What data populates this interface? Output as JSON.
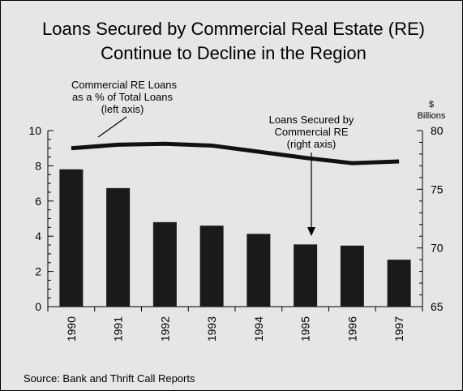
{
  "chart_data": {
    "type": "bar",
    "title_lines": [
      "Loans Secured by Commercial Real Estate (RE)",
      "Continue to Decline in the Region"
    ],
    "categories": [
      "1990",
      "1991",
      "1992",
      "1993",
      "1994",
      "1995",
      "1996",
      "1997"
    ],
    "series": [
      {
        "name": "Commercial RE Loans as a % of Total Loans (left axis)",
        "type": "line",
        "axis": "left",
        "values": [
          9.0,
          9.2,
          9.25,
          9.15,
          8.8,
          8.45,
          8.15,
          8.25
        ]
      },
      {
        "name": "Loans Secured by Commercial RE (right axis)",
        "type": "bar",
        "axis": "right",
        "values": [
          76.7,
          75.1,
          72.2,
          71.9,
          71.2,
          70.3,
          70.2,
          69.0
        ]
      }
    ],
    "left_axis": {
      "ylim": [
        0,
        10
      ],
      "ticks": [
        "0",
        "2",
        "4",
        "6",
        "8",
        "10"
      ]
    },
    "right_axis": {
      "ylim": [
        65,
        80
      ],
      "ticks": [
        "65",
        "70",
        "75",
        "80"
      ],
      "unit_line1": "$",
      "unit_line2": "Billions"
    },
    "annotations": {
      "line_label": [
        "Commercial RE Loans",
        "as a % of Total Loans",
        "(left axis)"
      ],
      "bar_label": [
        "Loans Secured by",
        "Commercial RE",
        "(right axis)"
      ]
    },
    "grid": false,
    "legend": "none"
  },
  "source": "Source:  Bank and Thrift Call Reports"
}
